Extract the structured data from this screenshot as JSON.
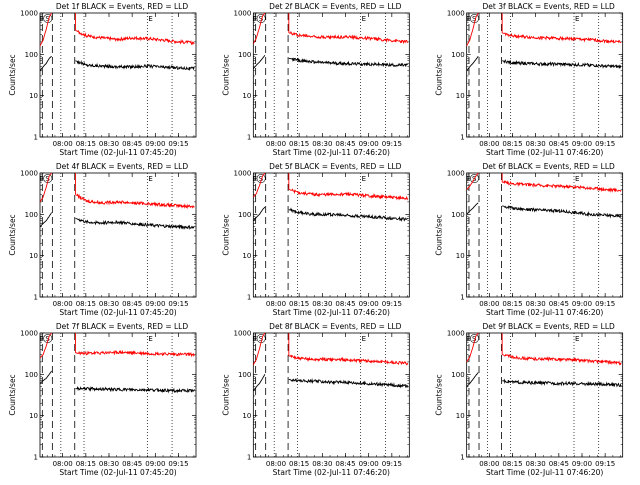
{
  "x_tick_labels": [
    "08:00",
    "08:15",
    "08:30",
    "08:45",
    "09:00",
    "09:15"
  ],
  "y_tick_labels": [
    "1",
    "10",
    "100",
    "1000"
  ],
  "ylabel": "Counts/sec",
  "marker_labels": {
    "e": "E",
    "s": "S"
  },
  "colors": {
    "events": "#000000",
    "lld": "#ff0000"
  },
  "chart_data": [
    {
      "type": "line",
      "title": "Det 1f BLACK = Events, RED = LLD",
      "xlabel": "Start Time (02-Jul-11 07:45:20)",
      "ylabel": "Counts/sec",
      "y_scale": "log",
      "ylim": [
        1,
        1000
      ],
      "x_unit": "minutes after 07:45:20",
      "xlim": [
        0,
        101
      ],
      "vlines_dashed": [
        1.5,
        8.0,
        22.5
      ],
      "vlines_dotted": [
        13.5,
        28.5,
        69.5,
        85.5
      ],
      "series": [
        {
          "name": "Events",
          "x": [
            0,
            2,
            4,
            6,
            7.5,
            23,
            30,
            40,
            50,
            60,
            70,
            80,
            90,
            100
          ],
          "values": [
            40,
            50,
            60,
            80,
            90,
            70,
            55,
            52,
            50,
            50,
            52,
            49,
            47,
            45
          ]
        },
        {
          "name": "LLD",
          "x": [
            0,
            2,
            4,
            6,
            7.5,
            23,
            30,
            40,
            50,
            60,
            70,
            80,
            90,
            100
          ],
          "values": [
            160,
            220,
            400,
            800,
            1000,
            380,
            280,
            250,
            230,
            250,
            240,
            220,
            200,
            190
          ]
        }
      ]
    },
    {
      "type": "line",
      "title": "Det 2f BLACK = Events, RED = LLD",
      "xlabel": "Start Time (02-Jul-11 07:46:20)",
      "ylabel": "Counts/sec",
      "y_scale": "log",
      "ylim": [
        1,
        1000
      ],
      "x_unit": "minutes after 07:46:20",
      "xlim": [
        0,
        101
      ],
      "vlines_dashed": [
        1.5,
        8.0,
        22.5
      ],
      "vlines_dotted": [
        13.5,
        28.5,
        69.5,
        85.5
      ],
      "series": [
        {
          "name": "Events",
          "x": [
            0,
            2,
            4,
            6,
            7.5,
            23,
            30,
            40,
            50,
            60,
            70,
            80,
            90,
            100
          ],
          "values": [
            45,
            55,
            65,
            80,
            95,
            80,
            70,
            65,
            62,
            60,
            58,
            57,
            55,
            55
          ]
        },
        {
          "name": "LLD",
          "x": [
            0,
            2,
            4,
            6,
            7.5,
            23,
            30,
            40,
            50,
            60,
            70,
            80,
            90,
            100
          ],
          "values": [
            180,
            250,
            450,
            850,
            1000,
            330,
            290,
            270,
            260,
            265,
            250,
            235,
            215,
            200
          ]
        }
      ]
    },
    {
      "type": "line",
      "title": "Det 3f BLACK = Events, RED = LLD",
      "xlabel": "Start Time (02-Jul-11 07:46:20)",
      "ylabel": "Counts/sec",
      "y_scale": "log",
      "ylim": [
        1,
        1000
      ],
      "x_unit": "minutes after 07:46:20",
      "xlim": [
        0,
        101
      ],
      "vlines_dashed": [
        1.5,
        8.0,
        22.5
      ],
      "vlines_dotted": [
        13.5,
        28.5,
        69.5,
        85.5
      ],
      "series": [
        {
          "name": "Events",
          "x": [
            0,
            2,
            4,
            6,
            7.5,
            23,
            30,
            40,
            50,
            60,
            70,
            80,
            90,
            100
          ],
          "values": [
            40,
            50,
            60,
            75,
            90,
            70,
            62,
            60,
            58,
            58,
            56,
            55,
            52,
            50
          ]
        },
        {
          "name": "LLD",
          "x": [
            0,
            2,
            4,
            6,
            7.5,
            23,
            30,
            40,
            50,
            60,
            70,
            80,
            90,
            100
          ],
          "values": [
            160,
            220,
            400,
            800,
            1000,
            330,
            280,
            260,
            250,
            245,
            235,
            225,
            210,
            200
          ]
        }
      ]
    },
    {
      "type": "line",
      "title": "Det 4f BLACK = Events, RED = LLD",
      "xlabel": "Start Time (02-Jul-11 07:45:20)",
      "ylabel": "Counts/sec",
      "y_scale": "log",
      "ylim": [
        1,
        1000
      ],
      "x_unit": "minutes after 07:45:20",
      "xlim": [
        0,
        101
      ],
      "vlines_dashed": [
        1.5,
        8.0,
        22.5
      ],
      "vlines_dotted": [
        13.5,
        28.5,
        69.5,
        85.5
      ],
      "series": [
        {
          "name": "Events",
          "x": [
            0,
            2,
            4,
            6,
            7.5,
            23,
            30,
            40,
            50,
            60,
            70,
            80,
            90,
            100
          ],
          "values": [
            50,
            60,
            70,
            90,
            110,
            80,
            65,
            62,
            65,
            60,
            55,
            52,
            50,
            48
          ]
        },
        {
          "name": "LLD",
          "x": [
            0,
            2,
            4,
            6,
            7.5,
            23,
            30,
            40,
            50,
            60,
            70,
            80,
            90,
            100
          ],
          "values": [
            200,
            260,
            450,
            850,
            1000,
            300,
            210,
            190,
            200,
            190,
            180,
            170,
            160,
            155
          ]
        }
      ]
    },
    {
      "type": "line",
      "title": "Det 5f BLACK = Events, RED = LLD",
      "xlabel": "Start Time (02-Jul-11 07:46:20)",
      "ylabel": "Counts/sec",
      "y_scale": "log",
      "ylim": [
        1,
        1000
      ],
      "x_unit": "minutes after 07:46:20",
      "xlim": [
        0,
        101
      ],
      "vlines_dashed": [
        1.5,
        8.0,
        22.5
      ],
      "vlines_dotted": [
        13.5,
        28.5,
        69.5,
        85.5
      ],
      "series": [
        {
          "name": "Events",
          "x": [
            0,
            2,
            4,
            6,
            7.5,
            23,
            30,
            40,
            50,
            60,
            70,
            80,
            90,
            100
          ],
          "values": [
            70,
            85,
            100,
            130,
            150,
            130,
            110,
            100,
            100,
            95,
            90,
            85,
            80,
            75
          ]
        },
        {
          "name": "LLD",
          "x": [
            0,
            2,
            4,
            6,
            7.5,
            23,
            30,
            40,
            50,
            60,
            70,
            80,
            90,
            100
          ],
          "values": [
            260,
            320,
            500,
            850,
            1000,
            400,
            330,
            300,
            300,
            310,
            290,
            270,
            255,
            240
          ]
        }
      ]
    },
    {
      "type": "line",
      "title": "Det 6f BLACK = Events, RED = LLD",
      "xlabel": "Start Time (02-Jul-11 07:46:20)",
      "ylabel": "Counts/sec",
      "y_scale": "log",
      "ylim": [
        1,
        1000
      ],
      "x_unit": "minutes after 07:46:20",
      "xlim": [
        0,
        101
      ],
      "vlines_dashed": [
        1.5,
        8.0,
        22.5
      ],
      "vlines_dotted": [
        13.5,
        28.5,
        69.5,
        85.5
      ],
      "series": [
        {
          "name": "Events",
          "x": [
            0,
            2,
            4,
            6,
            7.5,
            23,
            30,
            40,
            50,
            60,
            70,
            80,
            90,
            100
          ],
          "values": [
            100,
            120,
            140,
            170,
            190,
            160,
            140,
            130,
            125,
            120,
            110,
            100,
            95,
            90
          ]
        },
        {
          "name": "LLD",
          "x": [
            0,
            2,
            4,
            6,
            7.5,
            23,
            30,
            40,
            50,
            60,
            70,
            80,
            90,
            100
          ],
          "values": [
            400,
            480,
            620,
            850,
            1000,
            600,
            550,
            520,
            500,
            480,
            460,
            430,
            400,
            380
          ]
        }
      ]
    },
    {
      "type": "line",
      "title": "Det 7f BLACK = Events, RED = LLD",
      "xlabel": "Start Time (02-Jul-11 07:45:20)",
      "ylabel": "Counts/sec",
      "y_scale": "log",
      "ylim": [
        1,
        1000
      ],
      "x_unit": "minutes after 07:45:20",
      "xlim": [
        0,
        101
      ],
      "vlines_dashed": [
        1.5,
        8.0,
        22.5
      ],
      "vlines_dotted": [
        13.5,
        28.5,
        69.5,
        85.5
      ],
      "series": [
        {
          "name": "Events",
          "x": [
            0,
            2,
            4,
            6,
            7.5,
            23,
            30,
            40,
            50,
            60,
            70,
            80,
            90,
            100
          ],
          "values": [
            60,
            70,
            80,
            100,
            120,
            45,
            45,
            44,
            43,
            42,
            42,
            41,
            40,
            40
          ]
        },
        {
          "name": "LLD",
          "x": [
            0,
            2,
            4,
            6,
            7.5,
            23,
            30,
            40,
            50,
            60,
            70,
            80,
            90,
            100
          ],
          "values": [
            250,
            300,
            480,
            850,
            1000,
            330,
            320,
            330,
            340,
            330,
            320,
            310,
            305,
            300
          ]
        }
      ]
    },
    {
      "type": "line",
      "title": "Det 8f BLACK = Events, RED = LLD",
      "xlabel": "Start Time (02-Jul-11 07:46:20)",
      "ylabel": "Counts/sec",
      "y_scale": "log",
      "ylim": [
        1,
        1000
      ],
      "x_unit": "minutes after 07:46:20",
      "xlim": [
        0,
        101
      ],
      "vlines_dashed": [
        1.5,
        8.0,
        22.5
      ],
      "vlines_dotted": [
        13.5,
        28.5,
        69.5,
        85.5
      ],
      "series": [
        {
          "name": "Events",
          "x": [
            0,
            2,
            4,
            6,
            7.5,
            23,
            30,
            40,
            50,
            60,
            70,
            80,
            90,
            100
          ],
          "values": [
            40,
            50,
            60,
            80,
            100,
            75,
            70,
            68,
            65,
            65,
            60,
            58,
            55,
            52
          ]
        },
        {
          "name": "LLD",
          "x": [
            0,
            2,
            4,
            6,
            7.5,
            23,
            30,
            40,
            50,
            60,
            70,
            80,
            90,
            100
          ],
          "values": [
            170,
            230,
            420,
            820,
            1000,
            280,
            240,
            230,
            230,
            225,
            215,
            205,
            195,
            185
          ]
        }
      ]
    },
    {
      "type": "line",
      "title": "Det 9f BLACK = Events, RED = LLD",
      "xlabel": "Start Time (02-Jul-11 07:46:20)",
      "ylabel": "Counts/sec",
      "y_scale": "log",
      "ylim": [
        1,
        1000
      ],
      "x_unit": "minutes after 07:46:20",
      "xlim": [
        0,
        101
      ],
      "vlines_dashed": [
        1.5,
        8.0,
        22.5
      ],
      "vlines_dotted": [
        13.5,
        28.5,
        69.5,
        85.5
      ],
      "series": [
        {
          "name": "Events",
          "x": [
            0,
            2,
            4,
            6,
            7.5,
            23,
            30,
            40,
            50,
            60,
            70,
            80,
            90,
            100
          ],
          "values": [
            50,
            60,
            75,
            95,
            110,
            70,
            65,
            62,
            62,
            60,
            60,
            58,
            57,
            55
          ]
        },
        {
          "name": "LLD",
          "x": [
            0,
            2,
            4,
            6,
            7.5,
            23,
            30,
            40,
            50,
            60,
            70,
            80,
            90,
            100
          ],
          "values": [
            200,
            260,
            450,
            850,
            1000,
            300,
            260,
            240,
            235,
            230,
            225,
            210,
            200,
            185
          ]
        }
      ]
    }
  ]
}
